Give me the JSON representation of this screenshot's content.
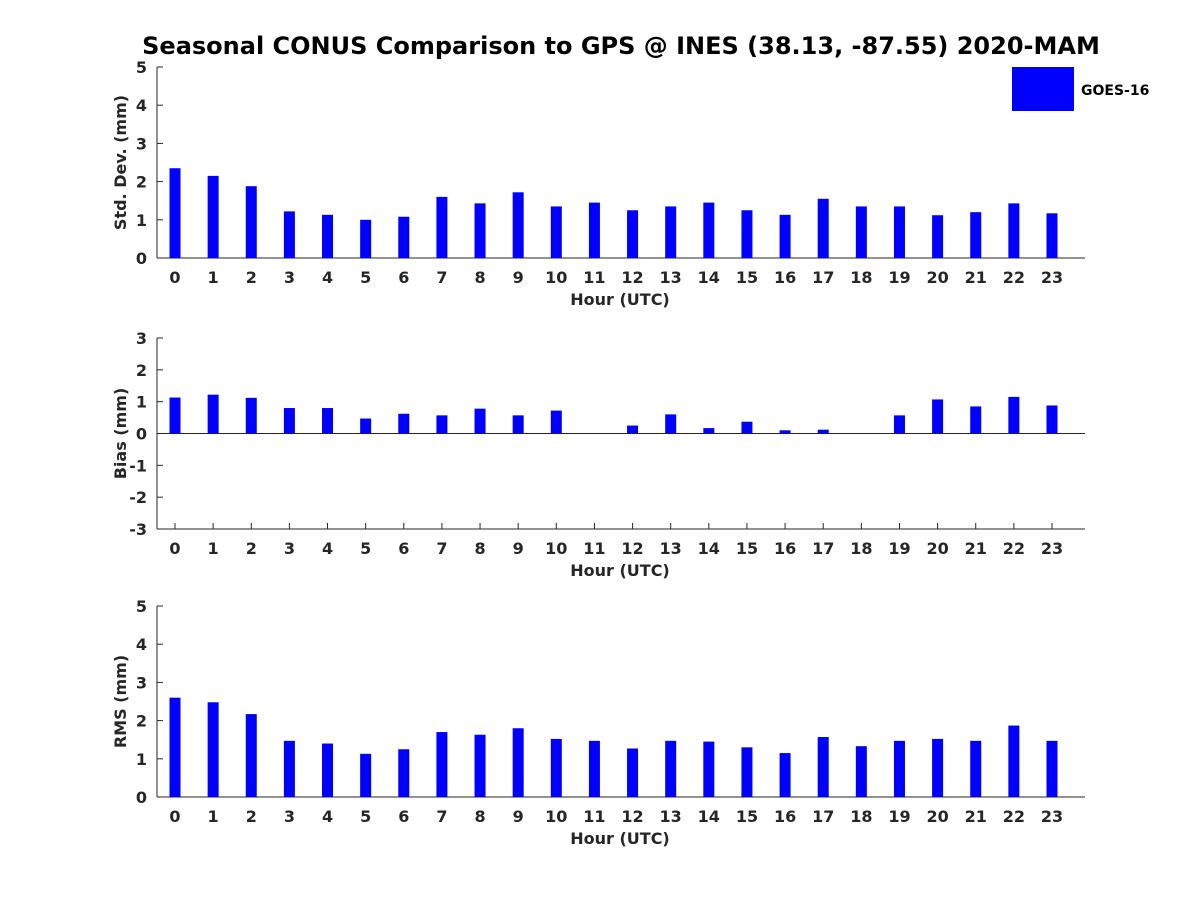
{
  "figure": {
    "title": "Seasonal CONUS Comparison to GPS @ INES (38.13, -87.55) 2020-MAM",
    "bar_color": "#0000ff",
    "legend": {
      "label": "GOES-16",
      "placement": "top-right"
    }
  },
  "chart_data": [
    {
      "type": "bar",
      "xlabel": "Hour (UTC)",
      "ylabel": "Std. Dev. (mm)",
      "ylim": [
        0,
        5
      ],
      "yticks": [
        "0",
        "1",
        "2",
        "3",
        "4",
        "5"
      ],
      "categories": [
        "0",
        "1",
        "2",
        "3",
        "4",
        "5",
        "6",
        "7",
        "8",
        "9",
        "10",
        "11",
        "12",
        "13",
        "14",
        "15",
        "16",
        "17",
        "18",
        "19",
        "20",
        "21",
        "22",
        "23"
      ],
      "series": [
        {
          "name": "GOES-16",
          "values": [
            2.35,
            2.15,
            1.88,
            1.22,
            1.13,
            1.0,
            1.08,
            1.6,
            1.43,
            1.72,
            1.35,
            1.45,
            1.25,
            1.35,
            1.45,
            1.25,
            1.13,
            1.55,
            1.35,
            1.35,
            1.12,
            1.2,
            1.43,
            1.17
          ]
        }
      ]
    },
    {
      "type": "bar",
      "xlabel": "Hour (UTC)",
      "ylabel": "Bias (mm)",
      "ylim": [
        -3,
        3
      ],
      "yticks": [
        "-3",
        "-2",
        "-1",
        "0",
        "1",
        "2",
        "3"
      ],
      "categories": [
        "0",
        "1",
        "2",
        "3",
        "4",
        "5",
        "6",
        "7",
        "8",
        "9",
        "10",
        "11",
        "12",
        "13",
        "14",
        "15",
        "16",
        "17",
        "18",
        "19",
        "20",
        "21",
        "22",
        "23"
      ],
      "series": [
        {
          "name": "GOES-16",
          "values": [
            1.13,
            1.22,
            1.12,
            0.8,
            0.8,
            0.47,
            0.62,
            0.57,
            0.78,
            0.57,
            0.72,
            0.0,
            0.25,
            0.6,
            0.17,
            0.37,
            0.1,
            0.12,
            0.0,
            0.57,
            1.07,
            0.85,
            1.15,
            0.88
          ]
        }
      ]
    },
    {
      "type": "bar",
      "xlabel": "Hour (UTC)",
      "ylabel": "RMS (mm)",
      "ylim": [
        0,
        5
      ],
      "yticks": [
        "0",
        "1",
        "2",
        "3",
        "4",
        "5"
      ],
      "categories": [
        "0",
        "1",
        "2",
        "3",
        "4",
        "5",
        "6",
        "7",
        "8",
        "9",
        "10",
        "11",
        "12",
        "13",
        "14",
        "15",
        "16",
        "17",
        "18",
        "19",
        "20",
        "21",
        "22",
        "23"
      ],
      "series": [
        {
          "name": "GOES-16",
          "values": [
            2.6,
            2.48,
            2.17,
            1.47,
            1.4,
            1.13,
            1.25,
            1.7,
            1.63,
            1.8,
            1.52,
            1.47,
            1.27,
            1.47,
            1.45,
            1.3,
            1.15,
            1.57,
            1.33,
            1.47,
            1.52,
            1.47,
            1.87,
            1.47
          ]
        }
      ]
    }
  ]
}
